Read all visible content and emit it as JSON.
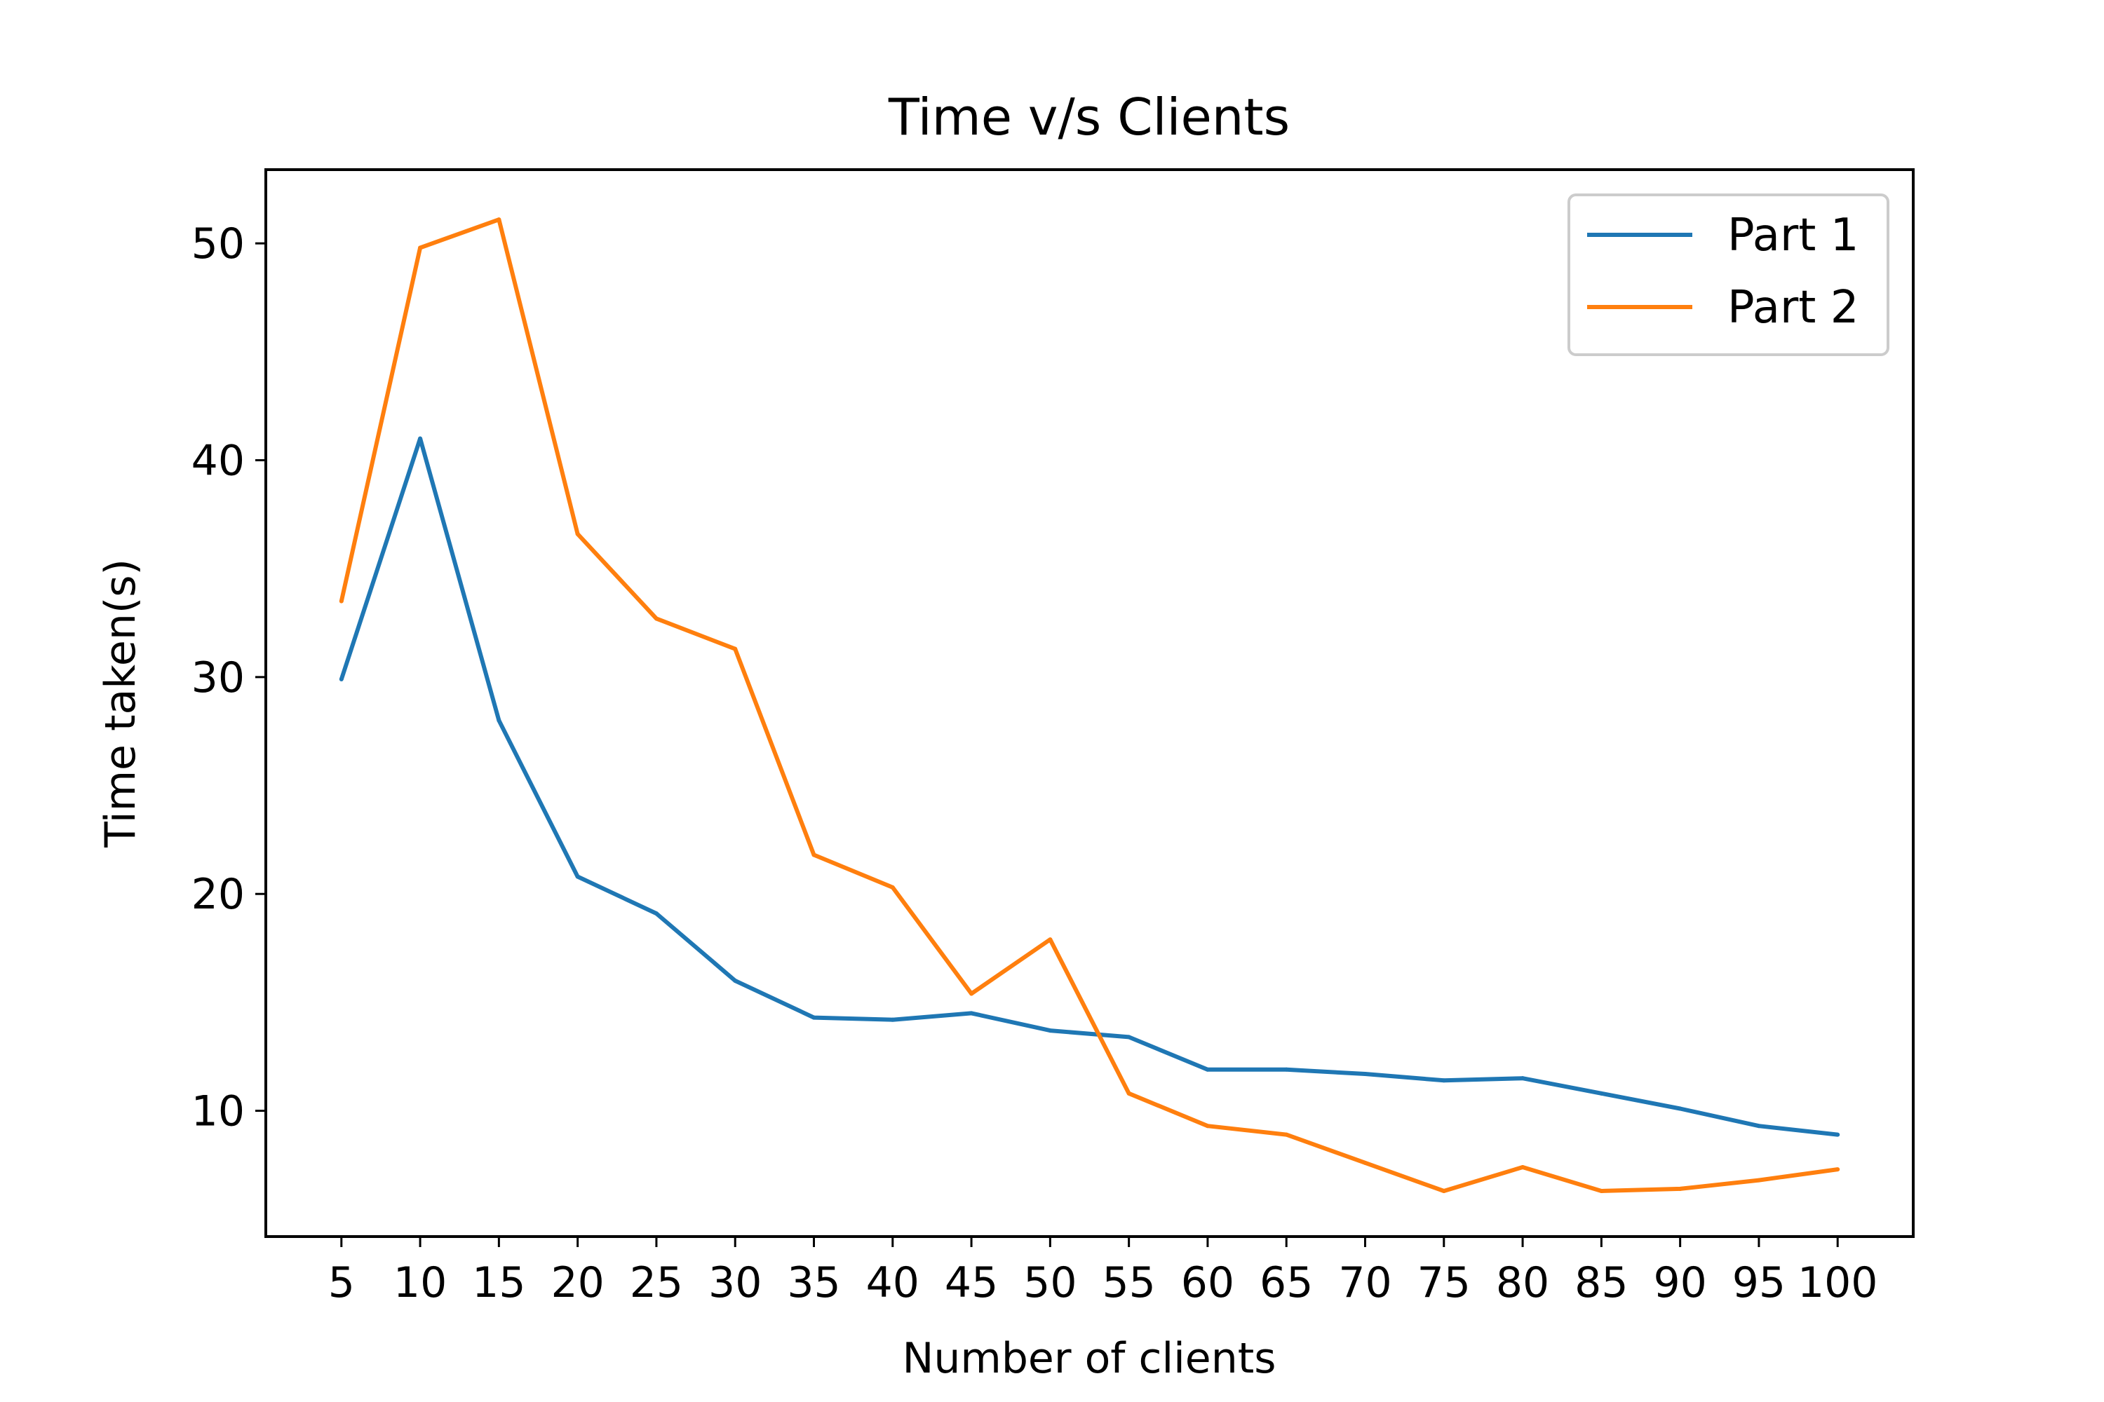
{
  "chart_data": {
    "type": "line",
    "title": "Time v/s Clients",
    "xlabel": "Number of clients",
    "ylabel": "Time taken(s)",
    "x": [
      5,
      10,
      15,
      20,
      25,
      30,
      35,
      40,
      45,
      50,
      55,
      60,
      65,
      70,
      75,
      80,
      85,
      90,
      95,
      100
    ],
    "x_ticks": [
      "5",
      "10",
      "15",
      "20",
      "25",
      "30",
      "35",
      "40",
      "45",
      "50",
      "55",
      "60",
      "65",
      "70",
      "75",
      "80",
      "85",
      "90",
      "95",
      "100"
    ],
    "y_ticks": [
      10,
      20,
      30,
      40,
      50
    ],
    "ylim": [
      4.2,
      53.4
    ],
    "xlim": [
      0.2,
      104.8
    ],
    "grid": false,
    "legend_position": "top-right",
    "series": [
      {
        "name": "Part 1",
        "color": "#1f77b4",
        "values": [
          29.9,
          41.0,
          28.0,
          20.8,
          19.1,
          16.0,
          14.3,
          14.2,
          14.5,
          13.7,
          13.4,
          11.9,
          11.9,
          11.7,
          11.4,
          11.5,
          10.8,
          10.1,
          9.3,
          8.9
        ]
      },
      {
        "name": "Part 2",
        "color": "#ff7f0e",
        "values": [
          33.5,
          49.8,
          51.1,
          36.6,
          32.7,
          31.3,
          21.8,
          20.3,
          15.4,
          17.9,
          10.8,
          9.3,
          8.9,
          7.6,
          6.3,
          7.4,
          6.3,
          6.4,
          6.8,
          7.3
        ]
      }
    ]
  }
}
